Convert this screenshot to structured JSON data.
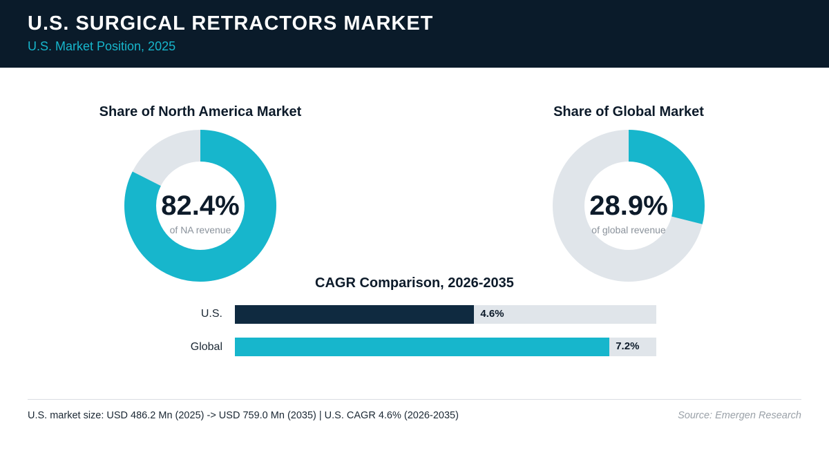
{
  "header": {
    "title": "U.S. SURGICAL RETRACTORS MARKET",
    "subtitle": "U.S. Market Position, 2025"
  },
  "colors": {
    "header_bg": "#0a1b2a",
    "accent": "#17b6cc",
    "dark_bar": "#0f2a40",
    "track": "#e0e5ea"
  },
  "chart_data": [
    {
      "type": "pie",
      "title": "Share of North America Market",
      "value": 82.4,
      "value_label": "82.4%",
      "caption": "of NA revenue",
      "unit": "%"
    },
    {
      "type": "pie",
      "title": "Share of Global Market",
      "value": 28.9,
      "value_label": "28.9%",
      "caption": "of global revenue",
      "unit": "%"
    },
    {
      "type": "bar",
      "orientation": "horizontal",
      "title": "CAGR Comparison, 2026-2035",
      "categories": [
        "U.S.",
        "Global"
      ],
      "values": [
        4.6,
        7.2
      ],
      "value_labels": [
        "4.6%",
        "7.2%"
      ],
      "xlim": [
        0,
        8.1
      ]
    }
  ],
  "footer": {
    "note": "U.S. market size: USD 486.2 Mn (2025) -> USD 759.0 Mn (2035)  |  U.S. CAGR 4.6% (2026-2035)",
    "source": "Source: Emergen Research"
  }
}
